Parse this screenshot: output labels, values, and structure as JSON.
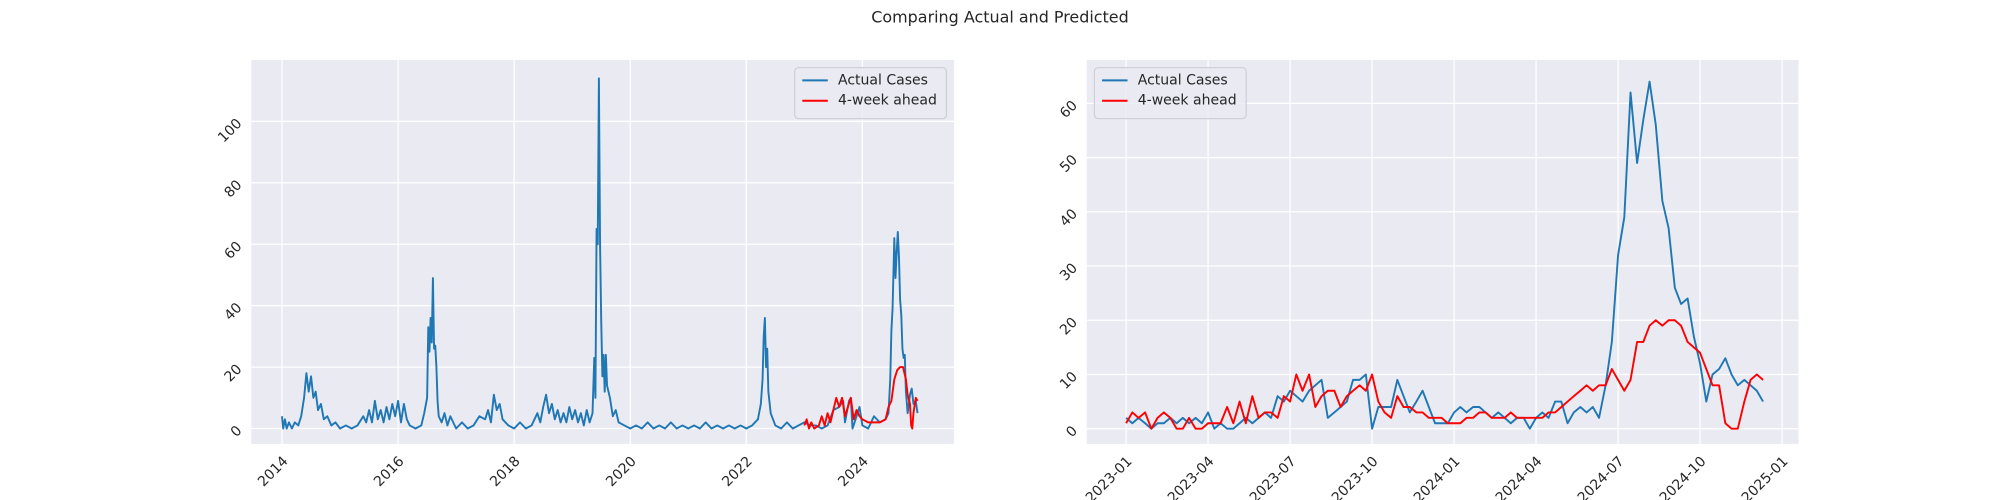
{
  "title": "Comparing Actual and Predicted",
  "chart_data": [
    {
      "type": "line",
      "legend": "upper right",
      "grid": true,
      "xlim": [
        2013.47,
        2025.58
      ],
      "ylim": [
        -5,
        120
      ],
      "xticks": [
        2014,
        2016,
        2018,
        2020,
        2022,
        2024
      ],
      "yticks": [
        0,
        20,
        40,
        60,
        80,
        100
      ],
      "series": [
        {
          "name": "Actual Cases",
          "color": "#1f77b4",
          "x": [
            2014.0,
            2014.02,
            2014.05,
            2014.08,
            2014.12,
            2014.17,
            2014.22,
            2014.28,
            2014.33,
            2014.38,
            2014.42,
            2014.46,
            2014.5,
            2014.54,
            2014.58,
            2014.62,
            2014.67,
            2014.72,
            2014.78,
            2014.85,
            2014.92,
            2015.0,
            2015.1,
            2015.2,
            2015.3,
            2015.4,
            2015.45,
            2015.5,
            2015.55,
            2015.6,
            2015.65,
            2015.7,
            2015.75,
            2015.8,
            2015.85,
            2015.9,
            2015.95,
            2016.0,
            2016.05,
            2016.1,
            2016.15,
            2016.2,
            2016.3,
            2016.4,
            2016.45,
            2016.5,
            2016.52,
            2016.54,
            2016.56,
            2016.58,
            2016.6,
            2016.62,
            2016.64,
            2016.66,
            2016.68,
            2016.7,
            2016.75,
            2016.8,
            2016.85,
            2016.9,
            2017.0,
            2017.1,
            2017.2,
            2017.3,
            2017.4,
            2017.5,
            2017.55,
            2017.6,
            2017.65,
            2017.7,
            2017.75,
            2017.8,
            2017.9,
            2018.0,
            2018.1,
            2018.2,
            2018.3,
            2018.4,
            2018.45,
            2018.5,
            2018.55,
            2018.6,
            2018.65,
            2018.7,
            2018.75,
            2018.8,
            2018.85,
            2018.9,
            2018.95,
            2019.0,
            2019.05,
            2019.1,
            2019.15,
            2019.2,
            2019.25,
            2019.3,
            2019.35,
            2019.38,
            2019.4,
            2019.42,
            2019.44,
            2019.46,
            2019.48,
            2019.5,
            2019.52,
            2019.54,
            2019.56,
            2019.58,
            2019.6,
            2019.65,
            2019.7,
            2019.75,
            2019.8,
            2019.9,
            2020.0,
            2020.1,
            2020.2,
            2020.3,
            2020.4,
            2020.5,
            2020.6,
            2020.7,
            2020.8,
            2020.9,
            2021.0,
            2021.1,
            2021.2,
            2021.3,
            2021.4,
            2021.5,
            2021.6,
            2021.7,
            2021.8,
            2021.9,
            2022.0,
            2022.1,
            2022.2,
            2022.25,
            2022.28,
            2022.3,
            2022.32,
            2022.34,
            2022.36,
            2022.38,
            2022.42,
            2022.5,
            2022.6,
            2022.7,
            2022.8,
            2022.9,
            2023.0,
            2023.1,
            2023.2,
            2023.3,
            2023.4,
            2023.5,
            2023.6,
            2023.67,
            2023.7,
            2023.77,
            2023.8,
            2023.83,
            2023.9,
            2023.95,
            2024.0,
            2024.1,
            2024.2,
            2024.3,
            2024.4,
            2024.45,
            2024.48,
            2024.5,
            2024.52,
            2024.55,
            2024.57,
            2024.59,
            2024.61,
            2024.63,
            2024.65,
            2024.67,
            2024.69,
            2024.71,
            2024.73,
            2024.75,
            2024.78,
            2024.82,
            2024.85,
            2024.88,
            2024.92,
            2024.95
          ],
          "values": [
            4,
            0,
            3,
            0,
            2,
            0,
            2,
            1,
            4,
            10,
            18,
            12,
            17,
            10,
            12,
            6,
            8,
            3,
            4,
            1,
            2,
            0,
            1,
            0,
            1,
            4,
            2,
            6,
            2,
            9,
            3,
            6,
            2,
            7,
            3,
            8,
            4,
            9,
            2,
            8,
            3,
            1,
            0,
            1,
            5,
            10,
            33,
            25,
            36,
            28,
            49,
            26,
            27,
            20,
            9,
            4,
            2,
            5,
            1,
            4,
            0,
            2,
            0,
            1,
            4,
            3,
            6,
            2,
            11,
            6,
            8,
            3,
            1,
            0,
            2,
            0,
            1,
            5,
            2,
            7,
            11,
            5,
            8,
            3,
            6,
            2,
            5,
            2,
            7,
            3,
            6,
            2,
            5,
            1,
            6,
            2,
            5,
            23,
            10,
            65,
            60,
            114,
            60,
            35,
            17,
            24,
            12,
            24,
            14,
            10,
            4,
            6,
            2,
            1,
            0,
            1,
            0,
            2,
            0,
            1,
            0,
            2,
            0,
            1,
            0,
            1,
            0,
            2,
            0,
            1,
            0,
            1,
            0,
            1,
            0,
            1,
            3,
            8,
            16,
            30,
            36,
            20,
            26,
            12,
            5,
            1,
            0,
            2,
            0,
            1,
            2,
            1,
            1,
            0,
            1,
            6,
            7,
            9,
            2,
            9,
            10,
            0,
            4,
            7,
            1,
            0,
            4,
            2,
            3,
            5,
            16,
            32,
            39,
            62,
            49,
            57,
            64,
            56,
            42,
            37,
            26,
            23,
            24,
            12,
            5,
            11,
            13,
            8,
            9,
            5
          ]
        },
        {
          "name": "4-week ahead",
          "color": "#ff0000",
          "x": [
            2023.0,
            2023.04,
            2023.08,
            2023.12,
            2023.17,
            2023.25,
            2023.3,
            2023.35,
            2023.4,
            2023.45,
            2023.5,
            2023.55,
            2023.6,
            2023.65,
            2023.7,
            2023.75,
            2023.8,
            2023.85,
            2023.9,
            2023.95,
            2024.0,
            2024.1,
            2024.2,
            2024.3,
            2024.4,
            2024.45,
            2024.5,
            2024.55,
            2024.6,
            2024.65,
            2024.7,
            2024.75,
            2024.78,
            2024.82,
            2024.84,
            2024.86,
            2024.88,
            2024.92,
            2024.95
          ],
          "values": [
            1,
            3,
            0,
            2,
            0,
            1,
            4,
            1,
            5,
            2,
            6,
            10,
            7,
            10,
            4,
            7,
            10,
            3,
            6,
            4,
            3,
            2,
            2,
            2,
            3,
            7,
            9,
            16,
            19,
            20,
            20,
            16,
            11,
            8,
            1,
            0,
            5,
            10,
            9
          ]
        }
      ]
    },
    {
      "type": "line",
      "legend": "upper left",
      "grid": true,
      "xlim": [
        2022.88,
        2025.05
      ],
      "ylim": [
        -2.8,
        68
      ],
      "xticks": [
        {
          "value": 2023.0,
          "label": "2023-01"
        },
        {
          "value": 2023.25,
          "label": "2023-04"
        },
        {
          "value": 2023.5,
          "label": "2023-07"
        },
        {
          "value": 2023.75,
          "label": "2023-10"
        },
        {
          "value": 2024.0,
          "label": "2024-01"
        },
        {
          "value": 2024.25,
          "label": "2024-04"
        },
        {
          "value": 2024.5,
          "label": "2024-07"
        },
        {
          "value": 2024.75,
          "label": "2024-10"
        },
        {
          "value": 2025.0,
          "label": "2025-01"
        }
      ],
      "yticks": [
        0,
        10,
        20,
        30,
        40,
        50,
        60
      ],
      "x": [
        2023.0,
        2023.019,
        2023.038,
        2023.058,
        2023.077,
        2023.096,
        2023.115,
        2023.135,
        2023.154,
        2023.173,
        2023.192,
        2023.212,
        2023.231,
        2023.25,
        2023.269,
        2023.288,
        2023.308,
        2023.327,
        2023.346,
        2023.365,
        2023.385,
        2023.404,
        2023.423,
        2023.442,
        2023.462,
        2023.481,
        2023.5,
        2023.519,
        2023.538,
        2023.558,
        2023.577,
        2023.596,
        2023.615,
        2023.635,
        2023.654,
        2023.673,
        2023.692,
        2023.712,
        2023.731,
        2023.75,
        2023.769,
        2023.788,
        2023.808,
        2023.827,
        2023.846,
        2023.865,
        2023.885,
        2023.904,
        2023.923,
        2023.942,
        2023.962,
        2023.981,
        2024.0,
        2024.019,
        2024.038,
        2024.058,
        2024.077,
        2024.096,
        2024.115,
        2024.135,
        2024.154,
        2024.173,
        2024.192,
        2024.212,
        2024.231,
        2024.25,
        2024.269,
        2024.288,
        2024.308,
        2024.327,
        2024.346,
        2024.365,
        2024.385,
        2024.404,
        2024.423,
        2024.442,
        2024.462,
        2024.481,
        2024.5,
        2024.519,
        2024.538,
        2024.558,
        2024.577,
        2024.596,
        2024.615,
        2024.635,
        2024.654,
        2024.673,
        2024.692,
        2024.712,
        2024.731,
        2024.75,
        2024.769,
        2024.788,
        2024.808,
        2024.827,
        2024.846,
        2024.865,
        2024.885,
        2024.904,
        2024.923,
        2024.942
      ],
      "series": [
        {
          "name": "Actual Cases",
          "color": "#1f77b4",
          "values": [
            2,
            1,
            2,
            1,
            0,
            1,
            1,
            2,
            1,
            2,
            1,
            2,
            1,
            3,
            0,
            1,
            0,
            0,
            1,
            2,
            1,
            2,
            3,
            2,
            6,
            5,
            7,
            6,
            5,
            7,
            8,
            9,
            2,
            3,
            4,
            5,
            9,
            9,
            10,
            0,
            4,
            4,
            4,
            9,
            6,
            3,
            5,
            7,
            4,
            1,
            1,
            1,
            3,
            4,
            3,
            4,
            4,
            3,
            2,
            3,
            2,
            1,
            2,
            2,
            0,
            2,
            3,
            2,
            5,
            5,
            1,
            3,
            4,
            3,
            4,
            2,
            8,
            16,
            32,
            39,
            62,
            49,
            57,
            64,
            56,
            42,
            37,
            26,
            23,
            24,
            17,
            12,
            5,
            10,
            11,
            13,
            10,
            8,
            9,
            8,
            7,
            5
          ]
        },
        {
          "name": "4-week ahead",
          "color": "#ff0000",
          "values": [
            1,
            3,
            2,
            3,
            0,
            2,
            3,
            2,
            0,
            0,
            2,
            0,
            0,
            1,
            1,
            1,
            4,
            1,
            5,
            1,
            6,
            2,
            3,
            3,
            2,
            6,
            5,
            10,
            7,
            10,
            4,
            6,
            7,
            7,
            4,
            6,
            7,
            8,
            7,
            10,
            5,
            3,
            2,
            6,
            4,
            4,
            3,
            3,
            2,
            2,
            2,
            1,
            1,
            1,
            2,
            2,
            3,
            3,
            2,
            2,
            2,
            3,
            2,
            2,
            2,
            2,
            2,
            3,
            3,
            4,
            5,
            6,
            7,
            8,
            7,
            8,
            8,
            11,
            9,
            7,
            9,
            16,
            16,
            19,
            20,
            19,
            20,
            20,
            19,
            16,
            15,
            14,
            11,
            8,
            8,
            1,
            0,
            0,
            5,
            9,
            10,
            9
          ]
        }
      ]
    }
  ]
}
